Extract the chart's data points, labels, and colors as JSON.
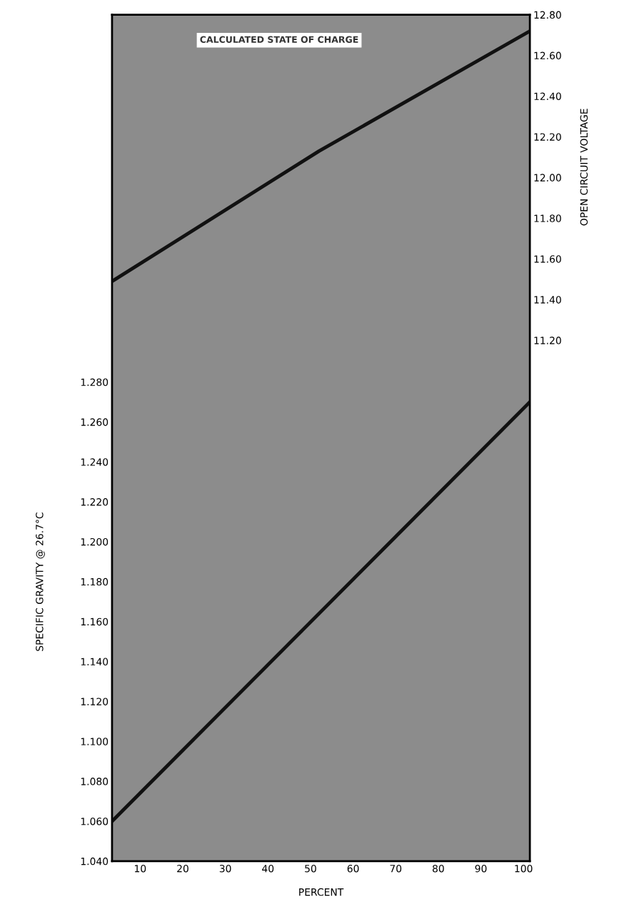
{
  "chart_data": {
    "type": "line",
    "title": "CALCULATED STATE OF CHARGE",
    "xlabel": "PERCENT",
    "ylabel": "SPECIFIC GRAVITY @ 26.7°C",
    "y2label": "OPEN CIRCUIT VOLTAGE",
    "xlim": [
      3.4,
      101.5
    ],
    "xticks": [
      10,
      20,
      30,
      40,
      50,
      60,
      70,
      80,
      90,
      100
    ],
    "ylim": [
      1.04,
      1.464
    ],
    "yticks": [
      {
        "value": 1.04,
        "label": "1.040"
      },
      {
        "value": 1.06,
        "label": "1.060"
      },
      {
        "value": 1.08,
        "label": "1.080"
      },
      {
        "value": 1.1,
        "label": "1.100"
      },
      {
        "value": 1.12,
        "label": "1.120"
      },
      {
        "value": 1.14,
        "label": "1.140"
      },
      {
        "value": 1.16,
        "label": "1.160"
      },
      {
        "value": 1.18,
        "label": "1.180"
      },
      {
        "value": 1.2,
        "label": "1.200"
      },
      {
        "value": 1.22,
        "label": "1.220"
      },
      {
        "value": 1.24,
        "label": "1.240"
      },
      {
        "value": 1.26,
        "label": "1.260"
      },
      {
        "value": 1.28,
        "label": "1.280"
      }
    ],
    "y2lim": [
      8.64,
      12.8
    ],
    "y2ticks": [
      {
        "value": 11.2,
        "label": "11.20"
      },
      {
        "value": 11.4,
        "label": "11.40"
      },
      {
        "value": 11.6,
        "label": "11.60"
      },
      {
        "value": 11.8,
        "label": "11.80"
      },
      {
        "value": 12.0,
        "label": "12.00"
      },
      {
        "value": 12.2,
        "label": "12.20"
      },
      {
        "value": 12.4,
        "label": "12.40"
      },
      {
        "value": 12.6,
        "label": "12.60"
      },
      {
        "value": 12.8,
        "label": "12.80"
      }
    ],
    "grid": false,
    "marker": "none",
    "line_style": "solid",
    "series": [
      {
        "color": "#111111",
        "axis": "y2",
        "x": [
          3.4,
          52,
          101.5
        ],
        "values": [
          11.49,
          12.13,
          12.72
        ]
      },
      {
        "color": "#111111",
        "axis": "y",
        "x": [
          3.4,
          101.5
        ],
        "values": [
          1.06,
          1.27
        ]
      }
    ]
  }
}
